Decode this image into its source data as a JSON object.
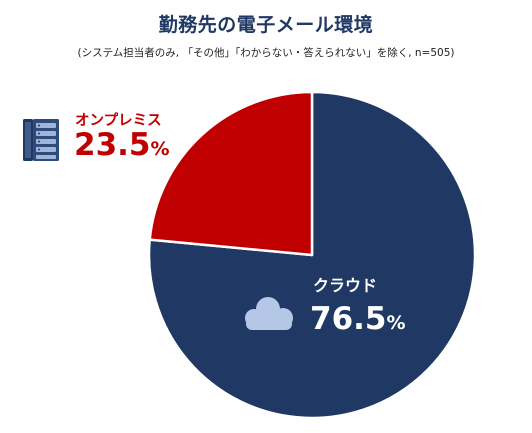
{
  "title": "勤務先の電子メール環境",
  "subtitle": "(システム担当者のみ, 「その他」「わからない・答えられない」を除く, n=505)",
  "chart_data": {
    "type": "pie",
    "title": "勤務先の電子メール環境",
    "subtitle": "(システム担当者のみ, 「その他」「わからない・答えられない」を除く, n=505)",
    "slices": [
      {
        "label": "クラウド",
        "value": 76.5,
        "value_text": "76.5",
        "unit": "%",
        "color": "#1f3864",
        "icon": "cloud-icon"
      },
      {
        "label": "オンプレミス",
        "value": 23.5,
        "value_text": "23.5",
        "unit": "%",
        "color": "#c00000",
        "icon": "server-icon"
      }
    ]
  }
}
